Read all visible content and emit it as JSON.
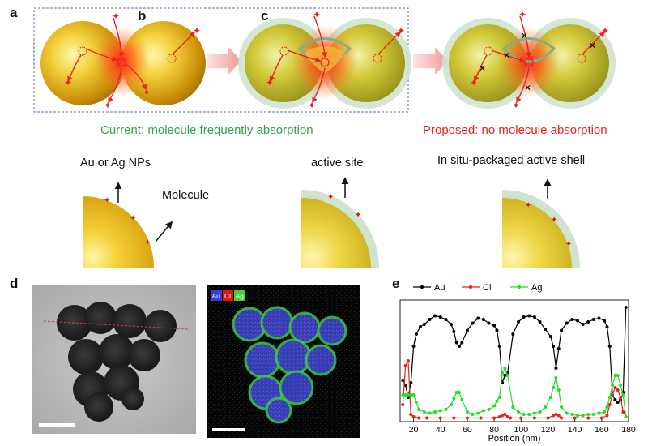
{
  "panels": {
    "a": "a",
    "b": "b",
    "c": "c",
    "d": "d",
    "e": "e"
  },
  "captions": {
    "current": "Current: molecule frequently absorption",
    "proposed": "Proposed: no molecule absorption"
  },
  "labels": {
    "np": "Au or Ag NPs",
    "molecule": "Molecule",
    "active_site": "active site",
    "shell": "In situ-packaged active shell"
  },
  "eds_legend": [
    "Au",
    "Cl",
    "Ag"
  ],
  "colors": {
    "current": "#2aa845",
    "proposed": "#e8231c",
    "au_series": "#000000",
    "cl_series": "#e8231c",
    "ag_series": "#22e022",
    "eds_au": "#3b3bd9",
    "eds_cl": "#e01818",
    "eds_ag": "#3ad43a"
  },
  "chart_data": {
    "type": "line",
    "xlabel": "Position (nm)",
    "ylabel": "",
    "xlim": [
      10,
      180
    ],
    "xticks": [
      20,
      40,
      60,
      80,
      100,
      120,
      140,
      160,
      180
    ],
    "grid": false,
    "legend_position": "top-left",
    "series": [
      {
        "name": "Au",
        "x": [
          12,
          14,
          16,
          18,
          20,
          22,
          25,
          28,
          32,
          36,
          40,
          44,
          48,
          50,
          52,
          54,
          56,
          60,
          64,
          68,
          72,
          76,
          80,
          82,
          84,
          86,
          88,
          90,
          94,
          98,
          102,
          106,
          110,
          114,
          118,
          122,
          124,
          126,
          128,
          130,
          134,
          138,
          142,
          146,
          150,
          154,
          158,
          162,
          164,
          166,
          168,
          170,
          172,
          174,
          176,
          178
        ],
        "y": [
          0.34,
          0.3,
          0.2,
          0.32,
          0.62,
          0.72,
          0.78,
          0.8,
          0.84,
          0.87,
          0.86,
          0.84,
          0.8,
          0.74,
          0.65,
          0.62,
          0.65,
          0.75,
          0.81,
          0.85,
          0.84,
          0.81,
          0.79,
          0.75,
          0.62,
          0.32,
          0.38,
          0.4,
          0.72,
          0.82,
          0.86,
          0.87,
          0.86,
          0.82,
          0.76,
          0.7,
          0.62,
          0.44,
          0.6,
          0.75,
          0.81,
          0.84,
          0.83,
          0.8,
          0.82,
          0.84,
          0.85,
          0.83,
          0.78,
          0.62,
          0.22,
          0.18,
          0.16,
          0.18,
          0.24,
          0.94
        ]
      },
      {
        "name": "Cl",
        "x": [
          12,
          14,
          16,
          18,
          20,
          24,
          30,
          40,
          50,
          60,
          70,
          80,
          84,
          86,
          88,
          90,
          92,
          100,
          110,
          120,
          124,
          126,
          128,
          130,
          140,
          150,
          160,
          164,
          166,
          168,
          170,
          172,
          174,
          176,
          178
        ],
        "y": [
          0.14,
          0.46,
          0.5,
          0.06,
          0.04,
          0.03,
          0.03,
          0.03,
          0.03,
          0.03,
          0.03,
          0.03,
          0.04,
          0.05,
          0.06,
          0.04,
          0.03,
          0.03,
          0.03,
          0.03,
          0.05,
          0.06,
          0.05,
          0.03,
          0.03,
          0.03,
          0.03,
          0.05,
          0.14,
          0.22,
          0.28,
          0.26,
          0.2,
          0.08,
          0.04
        ]
      },
      {
        "name": "Ag",
        "x": [
          12,
          14,
          16,
          18,
          20,
          22,
          24,
          28,
          32,
          36,
          40,
          44,
          48,
          50,
          52,
          54,
          56,
          60,
          64,
          68,
          72,
          76,
          80,
          82,
          84,
          86,
          88,
          90,
          94,
          98,
          102,
          106,
          110,
          114,
          118,
          122,
          124,
          126,
          128,
          130,
          134,
          138,
          142,
          146,
          150,
          154,
          158,
          162,
          164,
          166,
          168,
          170,
          172,
          174,
          176,
          178
        ],
        "y": [
          0.22,
          0.22,
          0.22,
          0.22,
          0.22,
          0.16,
          0.1,
          0.08,
          0.07,
          0.08,
          0.09,
          0.1,
          0.14,
          0.19,
          0.24,
          0.24,
          0.18,
          0.08,
          0.06,
          0.07,
          0.09,
          0.1,
          0.13,
          0.17,
          0.2,
          0.4,
          0.44,
          0.38,
          0.12,
          0.08,
          0.06,
          0.06,
          0.07,
          0.08,
          0.12,
          0.2,
          0.28,
          0.36,
          0.26,
          0.12,
          0.07,
          0.06,
          0.05,
          0.05,
          0.06,
          0.06,
          0.07,
          0.08,
          0.12,
          0.2,
          0.3,
          0.38,
          0.38,
          0.3,
          0.22,
          0.04
        ]
      }
    ]
  }
}
